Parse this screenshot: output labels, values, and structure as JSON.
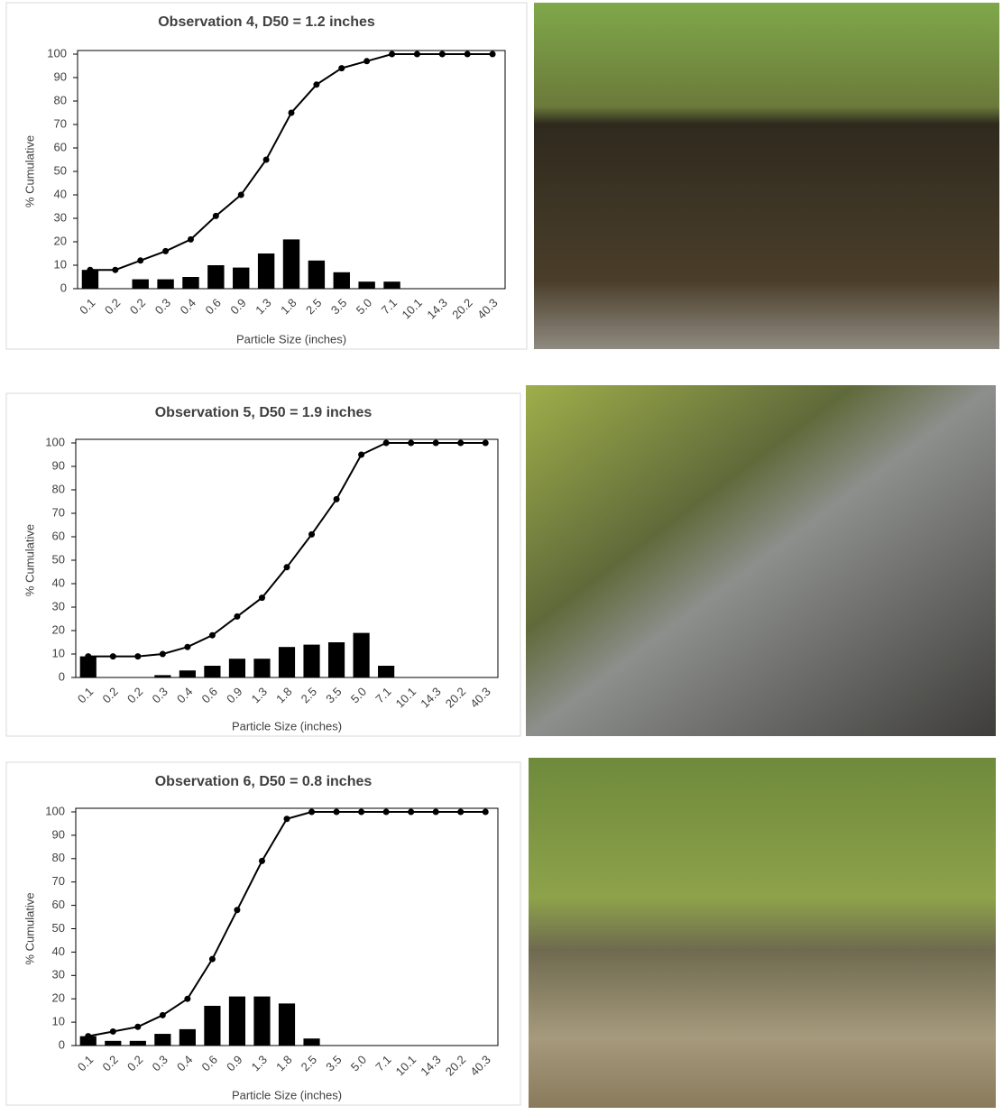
{
  "chart_data": [
    {
      "type": "bar_line",
      "title": "Observation 4, D50 = 1.2 inches",
      "y_label": "% Cumulative",
      "x_label": "Particle Size (inches)",
      "categories": [
        "0.1",
        "0.2",
        "0.2",
        "0.3",
        "0.4",
        "0.6",
        "0.9",
        "1.3",
        "1.8",
        "2.5",
        "3.5",
        "5.0",
        "7.1",
        "10.1",
        "14.3",
        "20.2",
        "40.3"
      ],
      "series": [
        {
          "type": "bar",
          "color": "#000000",
          "values": [
            8,
            0,
            4,
            4,
            5,
            10,
            9,
            15,
            21,
            12,
            7,
            3,
            3,
            0,
            0,
            0,
            0
          ]
        },
        {
          "type": "line",
          "color": "#000000",
          "values": [
            8,
            8,
            12,
            16,
            21,
            31,
            40,
            55,
            75,
            87,
            94,
            97,
            100,
            100,
            100,
            100,
            100
          ]
        }
      ],
      "ylim": [
        0,
        100
      ],
      "yticks": [
        0,
        10,
        20,
        30,
        40,
        50,
        60,
        70,
        80,
        90,
        100
      ]
    },
    {
      "type": "bar_line",
      "title": "Observation 5, D50 = 1.9 inches",
      "y_label": "% Cumulative",
      "x_label": "Particle Size (inches)",
      "categories": [
        "0.1",
        "0.2",
        "0.2",
        "0.3",
        "0.4",
        "0.6",
        "0.9",
        "1.3",
        "1.8",
        "2.5",
        "3.5",
        "5.0",
        "7.1",
        "10.1",
        "14.3",
        "20.2",
        "40.3"
      ],
      "series": [
        {
          "type": "bar",
          "color": "#000000",
          "values": [
            9,
            0,
            0,
            1,
            3,
            5,
            8,
            8,
            13,
            14,
            15,
            19,
            5,
            0,
            0,
            0,
            0
          ]
        },
        {
          "type": "line",
          "color": "#000000",
          "values": [
            9,
            9,
            9,
            10,
            13,
            18,
            26,
            34,
            47,
            61,
            76,
            95,
            100,
            100,
            100,
            100,
            100
          ]
        }
      ],
      "ylim": [
        0,
        100
      ],
      "yticks": [
        0,
        10,
        20,
        30,
        40,
        50,
        60,
        70,
        80,
        90,
        100
      ]
    },
    {
      "type": "bar_line",
      "title": "Observation 6, D50 = 0.8 inches",
      "y_label": "% Cumulative",
      "x_label": "Particle Size (inches)",
      "categories": [
        "0.1",
        "0.2",
        "0.2",
        "0.3",
        "0.4",
        "0.6",
        "0.9",
        "1.3",
        "1.8",
        "2.5",
        "3.5",
        "5.0",
        "7.1",
        "10.1",
        "14.3",
        "20.2",
        "40.3"
      ],
      "series": [
        {
          "type": "bar",
          "color": "#000000",
          "values": [
            4,
            2,
            2,
            5,
            7,
            17,
            21,
            21,
            18,
            3,
            0,
            0,
            0,
            0,
            0,
            0,
            0
          ]
        },
        {
          "type": "line",
          "color": "#000000",
          "values": [
            4,
            6,
            8,
            13,
            20,
            37,
            58,
            79,
            97,
            100,
            100,
            100,
            100,
            100,
            100,
            100,
            100
          ]
        }
      ],
      "ylim": [
        0,
        100
      ],
      "yticks": [
        0,
        10,
        20,
        30,
        40,
        50,
        60,
        70,
        80,
        90,
        100
      ]
    }
  ]
}
